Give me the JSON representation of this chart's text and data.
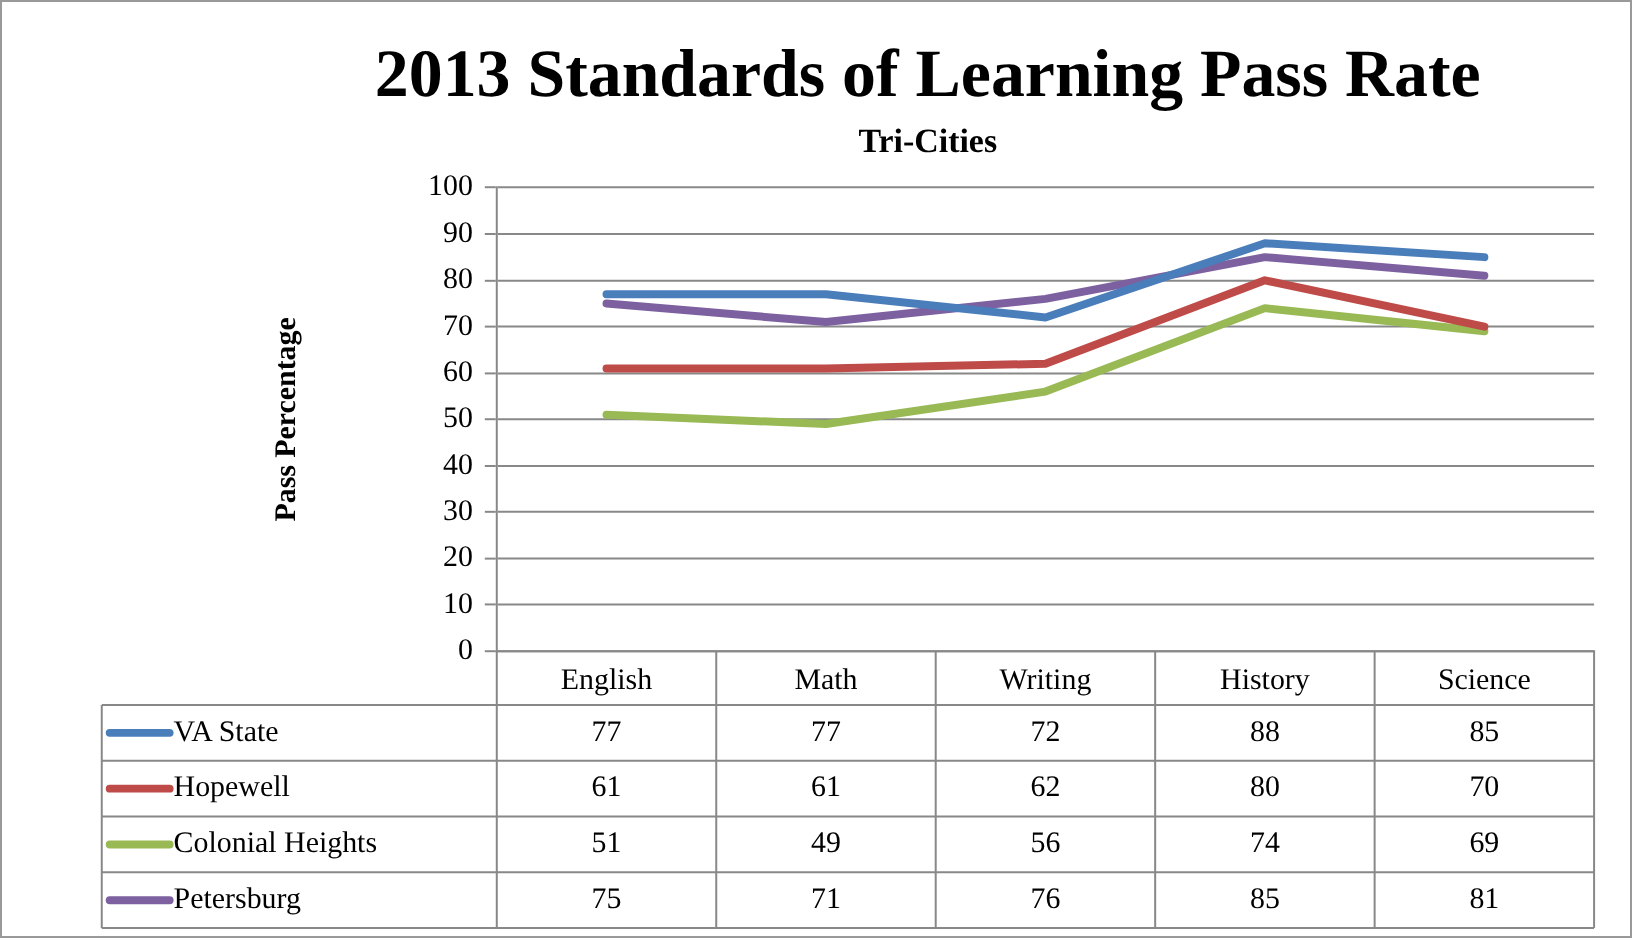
{
  "chart_data": {
    "type": "line",
    "title": "2013 Standards of Learning Pass Rate",
    "subtitle": "Tri-Cities",
    "ylabel": "Pass Percentage",
    "categories": [
      "English",
      "Math",
      "Writing",
      "History",
      "Science"
    ],
    "series": [
      {
        "name": "VA State",
        "color": "#4a7ebb",
        "values": [
          77,
          77,
          72,
          88,
          85
        ]
      },
      {
        "name": "Hopewell",
        "color": "#be4b48",
        "values": [
          61,
          61,
          62,
          80,
          70
        ]
      },
      {
        "name": "Colonial Heights",
        "color": "#98b954",
        "values": [
          51,
          49,
          56,
          74,
          69
        ]
      },
      {
        "name": "Petersburg",
        "color": "#7d60a0",
        "values": [
          75,
          71,
          76,
          85,
          81
        ]
      }
    ],
    "ylim": [
      0,
      100
    ],
    "yticks": [
      0,
      10,
      20,
      30,
      40,
      50,
      60,
      70,
      80,
      90,
      100
    ],
    "grid": "y",
    "legend": "bottom left",
    "data_labels": true,
    "marker": "none",
    "line_style": "solid"
  }
}
